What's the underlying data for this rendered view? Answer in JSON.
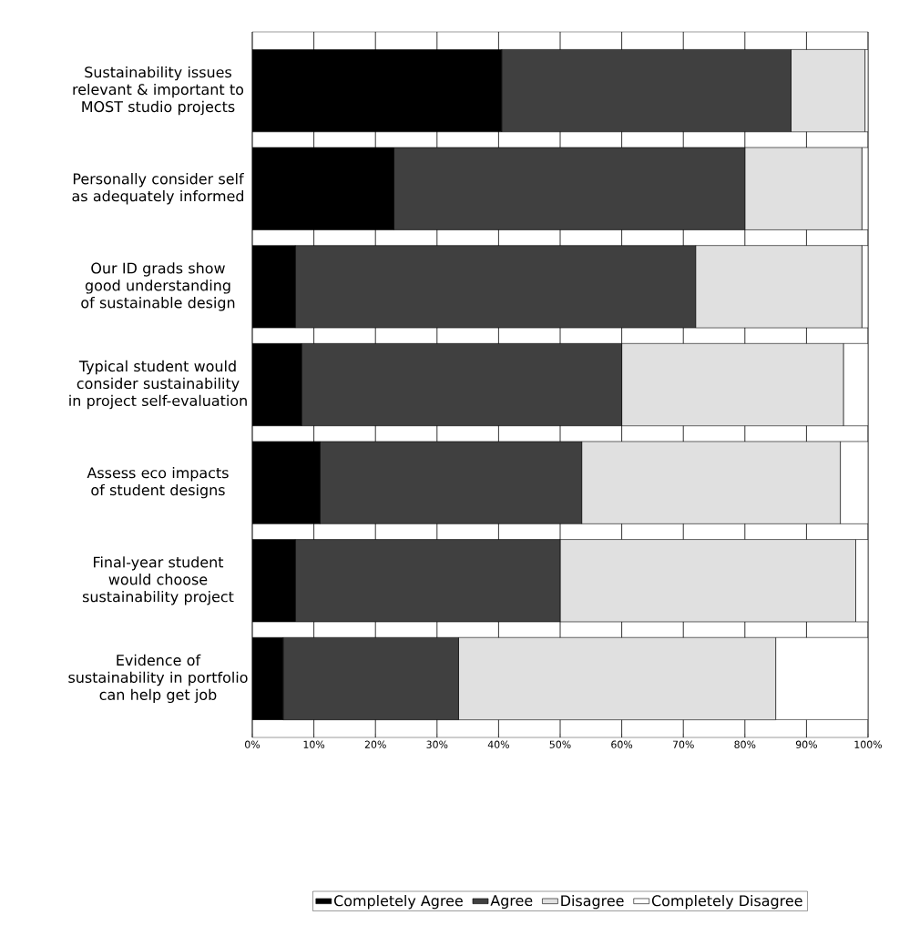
{
  "chart_data": {
    "type": "bar",
    "orientation": "horizontal",
    "stacked": true,
    "categories": [
      "Sustainability issues relevant & important to MOST studio projects",
      "Personally consider self as adequately informed",
      "Our ID grads show good understanding of sustainable design",
      "Typical student would consider sustainability in project self-evaluation",
      "Assess eco impacts of student designs",
      "Final-year student would choose sustainability project",
      "Evidence of sustainability in portfolio can help get job"
    ],
    "series": [
      {
        "name": "Completely Agree",
        "color": "#000000",
        "values": [
          40.5,
          23,
          7,
          8,
          11,
          7,
          5
        ]
      },
      {
        "name": "Agree",
        "color": "#404040",
        "values": [
          47,
          57,
          65,
          52,
          42.5,
          43,
          28.5
        ]
      },
      {
        "name": "Disagree",
        "color": "#e0e0e0",
        "values": [
          12,
          19,
          27,
          36,
          42,
          48,
          51.5
        ]
      },
      {
        "name": "Completely Disagree",
        "color": "#ffffff",
        "values": [
          0.5,
          1,
          1,
          4,
          4.5,
          2,
          15
        ]
      }
    ],
    "xlim": [
      0,
      100
    ],
    "xticks": [
      {
        "value": 0,
        "label": "0%"
      },
      {
        "value": 10,
        "label": "10%"
      },
      {
        "value": 20,
        "label": "20%"
      },
      {
        "value": 30,
        "label": "30%"
      },
      {
        "value": 40,
        "label": "40%"
      },
      {
        "value": 50,
        "label": "50%"
      },
      {
        "value": 60,
        "label": "60%"
      },
      {
        "value": 70,
        "label": "70%"
      },
      {
        "value": 80,
        "label": "80%"
      },
      {
        "value": 90,
        "label": "90%"
      },
      {
        "value": 100,
        "label": "100%"
      }
    ],
    "grid": "x",
    "legend": "bottom"
  }
}
